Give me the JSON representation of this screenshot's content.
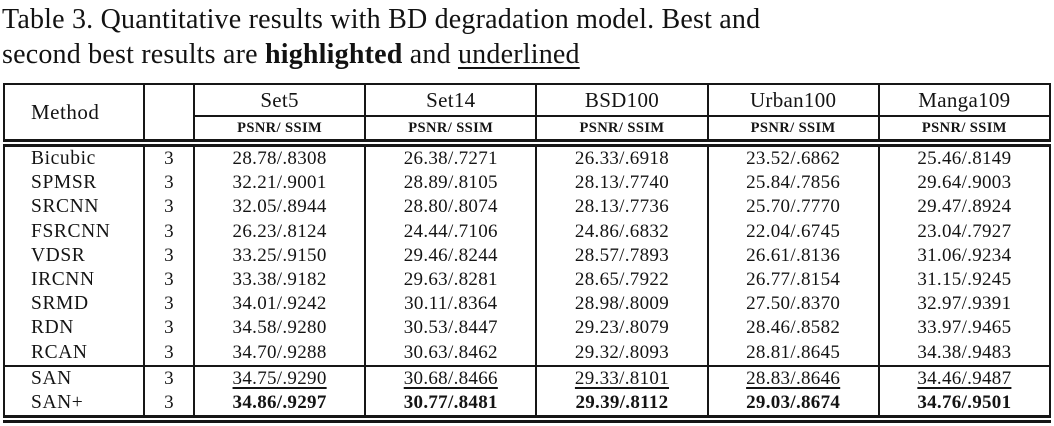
{
  "caption": {
    "line1": "Table 3. Quantitative results with BD degradation model. Best and",
    "line2_pre": "second best results are ",
    "line2_bold": "highlighted",
    "line2_mid": " and ",
    "line2_underline": "underlined"
  },
  "table": {
    "method_header": "Method",
    "scale_header": "",
    "datasets": [
      "Set5",
      "Set14",
      "BSD100",
      "Urban100",
      "Manga109"
    ],
    "metric_label": "PSNR/ SSIM",
    "rows": [
      {
        "method": "Bicubic",
        "scale": "3",
        "style": "normal",
        "cells": [
          "28.78/.8308",
          "26.38/.7271",
          "26.33/.6918",
          "23.52/.6862",
          "25.46/.8149"
        ]
      },
      {
        "method": "SPMSR",
        "scale": "3",
        "style": "normal",
        "cells": [
          "32.21/.9001",
          "28.89/.8105",
          "28.13/.7740",
          "25.84/.7856",
          "29.64/.9003"
        ]
      },
      {
        "method": "SRCNN",
        "scale": "3",
        "style": "normal",
        "cells": [
          "32.05/.8944",
          "28.80/.8074",
          "28.13/.7736",
          "25.70/.7770",
          "29.47/.8924"
        ]
      },
      {
        "method": "FSRCNN",
        "scale": "3",
        "style": "normal",
        "cells": [
          "26.23/.8124",
          "24.44/.7106",
          "24.86/.6832",
          "22.04/.6745",
          "23.04/.7927"
        ]
      },
      {
        "method": "VDSR",
        "scale": "3",
        "style": "normal",
        "cells": [
          "33.25/.9150",
          "29.46/.8244",
          "28.57/.7893",
          "26.61/.8136",
          "31.06/.9234"
        ]
      },
      {
        "method": "IRCNN",
        "scale": "3",
        "style": "normal",
        "cells": [
          "33.38/.9182",
          "29.63/.8281",
          "28.65/.7922",
          "26.77/.8154",
          "31.15/.9245"
        ]
      },
      {
        "method": "SRMD",
        "scale": "3",
        "style": "normal",
        "cells": [
          "34.01/.9242",
          "30.11/.8364",
          "28.98/.8009",
          "27.50/.8370",
          "32.97/.9391"
        ]
      },
      {
        "method": "RDN",
        "scale": "3",
        "style": "normal",
        "cells": [
          "34.58/.9280",
          "30.53/.8447",
          "29.23/.8079",
          "28.46/.8582",
          "33.97/.9465"
        ]
      },
      {
        "method": "RCAN",
        "scale": "3",
        "style": "normal",
        "cells": [
          "34.70/.9288",
          "30.63/.8462",
          "29.32/.8093",
          "28.81/.8645",
          "34.38/.9483"
        ]
      },
      {
        "method": "SAN",
        "scale": "3",
        "style": "underline",
        "group_start": true,
        "cells": [
          "34.75/.9290",
          "30.68/.8466",
          "29.33/.8101",
          "28.83/.8646",
          "34.46/.9487"
        ]
      },
      {
        "method": "SAN+",
        "scale": "3",
        "style": "bold",
        "cells": [
          "34.86/.9297",
          "30.77/.8481",
          "29.39/.8112",
          "29.03/.8674",
          "34.76/.9501"
        ]
      }
    ]
  }
}
